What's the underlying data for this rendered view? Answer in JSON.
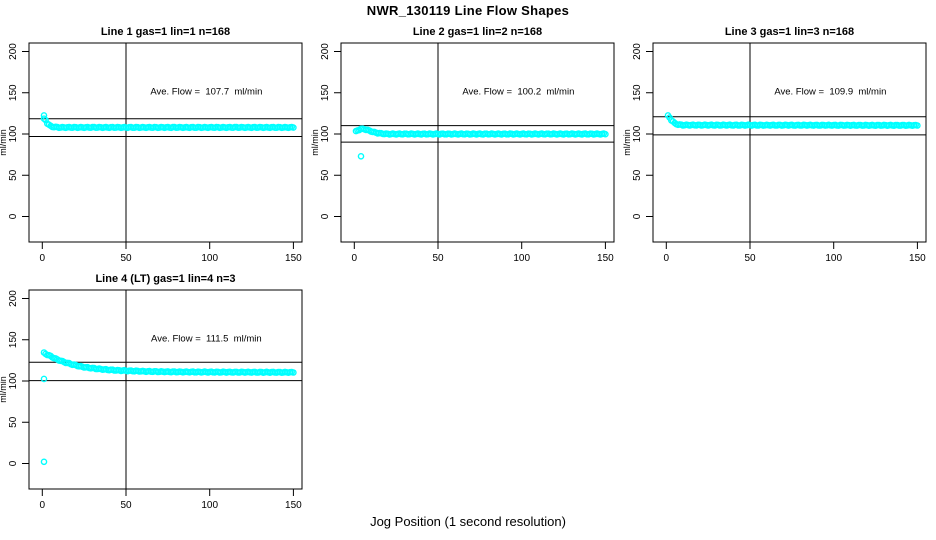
{
  "title": "NWR_130119  Line Flow Shapes",
  "xlabel": "Jog Position (1 second resolution)",
  "ylabel": "ml/min",
  "colors": {
    "marker": "#00ffff",
    "axis": "#000000",
    "text": "#000000",
    "background": "#ffffff"
  },
  "axes": {
    "xlim": [
      0,
      150
    ],
    "ylim": [
      0,
      200
    ],
    "x_ticks": [
      0,
      50,
      100,
      150
    ],
    "y_ticks": [
      0,
      50,
      100,
      150,
      200
    ],
    "vline_x": 50,
    "grid": false,
    "legend": "none"
  },
  "chart_data": [
    {
      "type": "scatter",
      "panel": "line-1",
      "title": "Line 1 gas=1 lin=1 n=168",
      "annotation": "Ave. Flow =  107.7  ml/min",
      "ave_flow": 107.7,
      "band": [
        96.9,
        118.5
      ],
      "keypoints": [
        [
          1,
          122
        ],
        [
          2,
          117
        ],
        [
          3,
          113
        ],
        [
          4,
          111
        ],
        [
          5,
          109.5
        ],
        [
          7,
          108.5
        ],
        [
          10,
          108
        ],
        [
          150,
          108
        ]
      ],
      "outliers": [
        [
          1,
          118.5
        ]
      ]
    },
    {
      "type": "scatter",
      "panel": "line-2",
      "title": "Line 2 gas=1 lin=2 n=168",
      "annotation": "Ave. Flow =  100.2  ml/min",
      "ave_flow": 100.2,
      "band": [
        90.2,
        110.2
      ],
      "keypoints": [
        [
          1,
          103
        ],
        [
          2,
          104.5
        ],
        [
          4,
          106
        ],
        [
          6,
          106
        ],
        [
          9,
          104
        ],
        [
          12,
          102
        ],
        [
          16,
          100.5
        ],
        [
          20,
          100
        ],
        [
          150,
          100
        ]
      ],
      "outliers": [
        [
          4,
          73
        ]
      ]
    },
    {
      "type": "scatter",
      "panel": "line-3",
      "title": "Line 3 gas=1 lin=3 n=168",
      "annotation": "Ave. Flow =  109.9  ml/min",
      "ave_flow": 109.9,
      "band": [
        98.9,
        120.9
      ],
      "keypoints": [
        [
          1,
          122
        ],
        [
          2,
          120
        ],
        [
          3,
          117
        ],
        [
          5,
          113
        ],
        [
          7,
          111.5
        ],
        [
          10,
          110.8
        ],
        [
          150,
          110.5
        ]
      ],
      "outliers": []
    },
    {
      "type": "scatter",
      "panel": "line-4",
      "title": "Line 4 (LT) gas=1 lin=4 n=3",
      "annotation": "Ave. Flow =  111.5  ml/min",
      "ave_flow": 111.5,
      "band": [
        100.4,
        122.7
      ],
      "keypoints": [
        [
          1,
          134
        ],
        [
          3,
          132
        ],
        [
          5,
          130
        ],
        [
          7,
          128
        ],
        [
          9,
          126
        ],
        [
          11,
          124.5
        ],
        [
          13,
          123
        ],
        [
          15,
          121.8
        ],
        [
          18,
          120
        ],
        [
          22,
          118
        ],
        [
          26,
          116.5
        ],
        [
          30,
          115.5
        ],
        [
          35,
          114.3
        ],
        [
          40,
          113.5
        ],
        [
          46,
          112.8
        ],
        [
          52,
          112.3
        ],
        [
          60,
          111.8
        ],
        [
          70,
          111.3
        ],
        [
          85,
          111
        ],
        [
          100,
          110.8
        ],
        [
          150,
          110.5
        ]
      ],
      "outliers": [
        [
          1,
          102.5
        ],
        [
          1,
          2
        ]
      ]
    }
  ]
}
